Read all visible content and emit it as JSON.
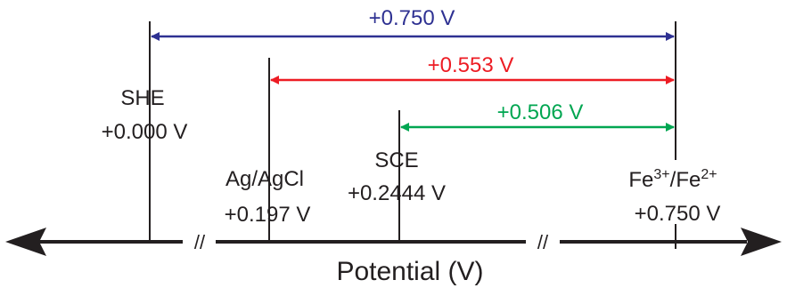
{
  "axis": {
    "title": "Potential (V)",
    "break_symbol": "//"
  },
  "references": {
    "she": {
      "name": "SHE",
      "potential": "+0.000 V"
    },
    "agagcl": {
      "name": "Ag/AgCl",
      "potential": "+0.197 V"
    },
    "sce": {
      "name": "SCE",
      "potential": "+0.2444 V"
    },
    "fe": {
      "base1": "Fe",
      "sup1": "3+",
      "slash": "/Fe",
      "sup2": "2+",
      "potential": "+0.750 V"
    }
  },
  "differences": {
    "vs_she": {
      "label": "+0.750 V",
      "color": "#2e3192"
    },
    "vs_agagcl": {
      "label": "+0.553 V",
      "color": "#ed1c24"
    },
    "vs_sce": {
      "label": "+0.506 V",
      "color": "#00a651"
    }
  },
  "colors": {
    "axis": "#231f20",
    "text": "#231f20"
  }
}
